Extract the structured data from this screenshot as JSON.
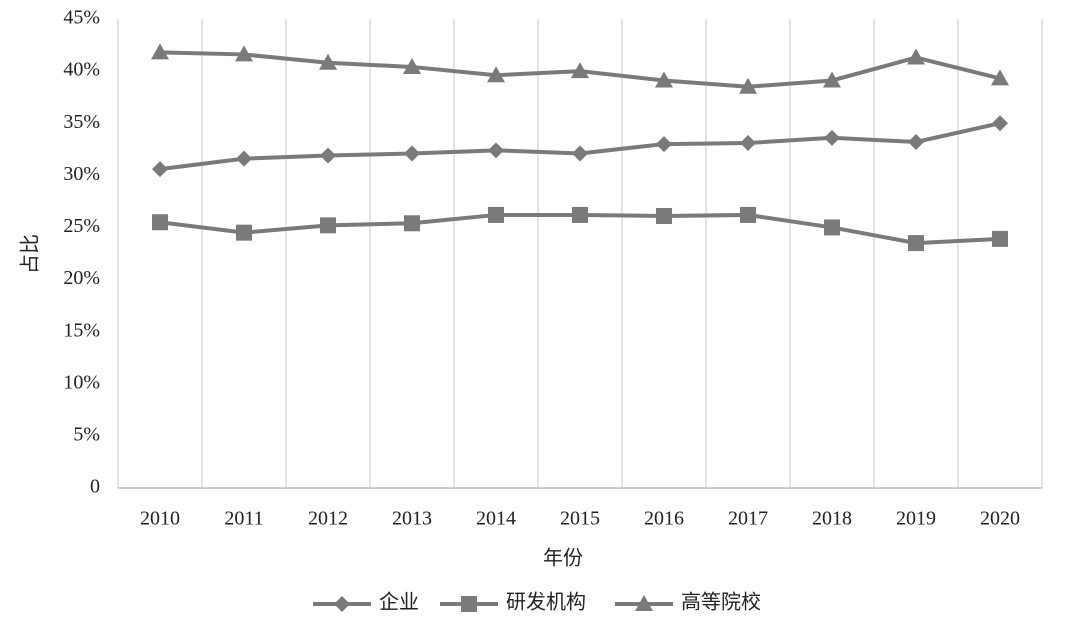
{
  "chart_data": {
    "type": "line",
    "x_label": "年份",
    "y_label": "占比",
    "categories": [
      "2010",
      "2011",
      "2012",
      "2013",
      "2014",
      "2015",
      "2016",
      "2017",
      "2018",
      "2019",
      "2020"
    ],
    "series": [
      {
        "name": "企业",
        "color": "#7a7a7a",
        "marker": "diamond",
        "values": [
          30.6,
          31.6,
          31.9,
          32.1,
          32.4,
          32.1,
          33.0,
          33.1,
          33.6,
          33.2,
          35.0
        ]
      },
      {
        "name": "研发机构",
        "color": "#7a7a7a",
        "marker": "square",
        "values": [
          25.5,
          24.5,
          25.2,
          25.4,
          26.2,
          26.2,
          26.1,
          26.2,
          25.0,
          23.5,
          23.9
        ]
      },
      {
        "name": "高等院校",
        "color": "#7a7a7a",
        "marker": "triangle",
        "values": [
          41.8,
          41.6,
          40.8,
          40.4,
          39.6,
          40.0,
          39.1,
          38.5,
          39.1,
          41.3,
          39.3
        ]
      }
    ],
    "ylim": [
      0,
      45
    ],
    "yticks": [
      0,
      {
        "value": 5,
        "label": "5%"
      },
      {
        "value": 10,
        "label": "10%"
      },
      {
        "value": 15,
        "label": "15%"
      },
      {
        "value": 20,
        "label": "20%"
      },
      {
        "value": 25,
        "label": "25%"
      },
      {
        "value": 30,
        "label": "30%"
      },
      {
        "value": 35,
        "label": "35%"
      },
      {
        "value": 40,
        "label": "40%"
      },
      {
        "value": 45,
        "label": "45%"
      }
    ],
    "grid": true,
    "legend": "bottom"
  }
}
